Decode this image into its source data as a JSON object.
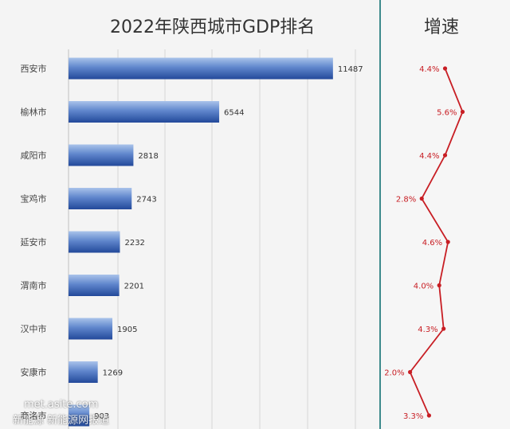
{
  "chart_data": [
    {
      "type": "bar",
      "orientation": "horizontal",
      "title": "2022年陕西城市GDP排名",
      "categories": [
        "西安市",
        "榆林市",
        "咸阳市",
        "宝鸡市",
        "延安市",
        "渭南市",
        "汉中市",
        "安康市",
        "商洛市"
      ],
      "values": [
        11487,
        6544,
        2818,
        2743,
        2232,
        2201,
        1905,
        1269,
        903
      ],
      "xlim": [
        0,
        13500
      ],
      "grid": true,
      "colors": {
        "bar_light": "#9ab6e4",
        "bar_dark": "#2650a0",
        "grid": "#d6d6d6"
      }
    },
    {
      "type": "line",
      "title": "增速",
      "categories": [
        "西安市",
        "榆林市",
        "咸阳市",
        "宝鸡市",
        "延安市",
        "渭南市",
        "汉中市",
        "安康市",
        "商洛市"
      ],
      "values": [
        4.4,
        5.6,
        4.4,
        2.8,
        4.6,
        4.0,
        4.3,
        2.0,
        3.3
      ],
      "labels": [
        "4.4%",
        "5.6%",
        "4.4%",
        "2.8%",
        "4.6%",
        "4.0%",
        "4.3%",
        "2.0%",
        "3.3%"
      ],
      "xlim": [
        0,
        8
      ],
      "colors": {
        "line": "#c81e24",
        "label": "#c81e24"
      }
    }
  ],
  "watermark": {
    "line1": "met.asite.com",
    "line2": "新能源 新能源网报道"
  }
}
